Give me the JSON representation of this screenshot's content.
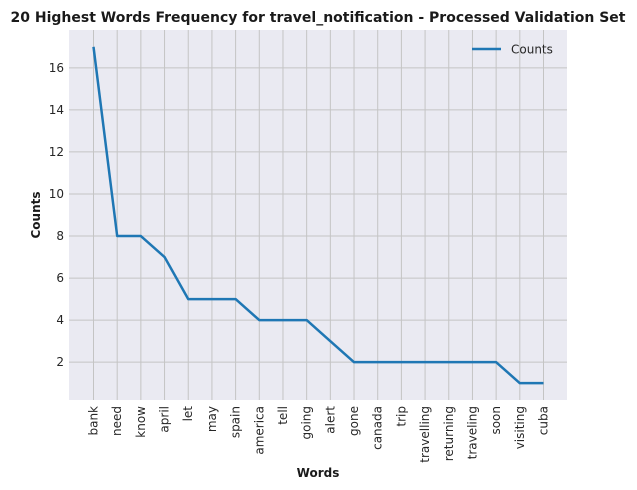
{
  "chart_data": {
    "type": "line",
    "title": "20 Highest Words Frequency for travel_notification - Processed Validation Set",
    "xlabel": "Words",
    "ylabel": "Counts",
    "categories": [
      "bank",
      "need",
      "know",
      "april",
      "let",
      "may",
      "spain",
      "america",
      "tell",
      "going",
      "alert",
      "gone",
      "canada",
      "trip",
      "travelling",
      "returning",
      "traveling",
      "soon",
      "visiting",
      "cuba"
    ],
    "series": [
      {
        "name": "Counts",
        "values": [
          17,
          8,
          8,
          7,
          5,
          5,
          5,
          4,
          4,
          4,
          3,
          2,
          2,
          2,
          2,
          2,
          2,
          2,
          1,
          1
        ]
      }
    ],
    "yticks": [
      "2",
      "4",
      "6",
      "8",
      "10",
      "12",
      "14",
      "16"
    ],
    "ylim": [
      0.2,
      17.8
    ],
    "grid": true,
    "legend_position": "top-right",
    "colors": {
      "line": "#1f77b4",
      "plot_bg": "#eaeaf2",
      "grid": "#c4c4c4"
    }
  }
}
